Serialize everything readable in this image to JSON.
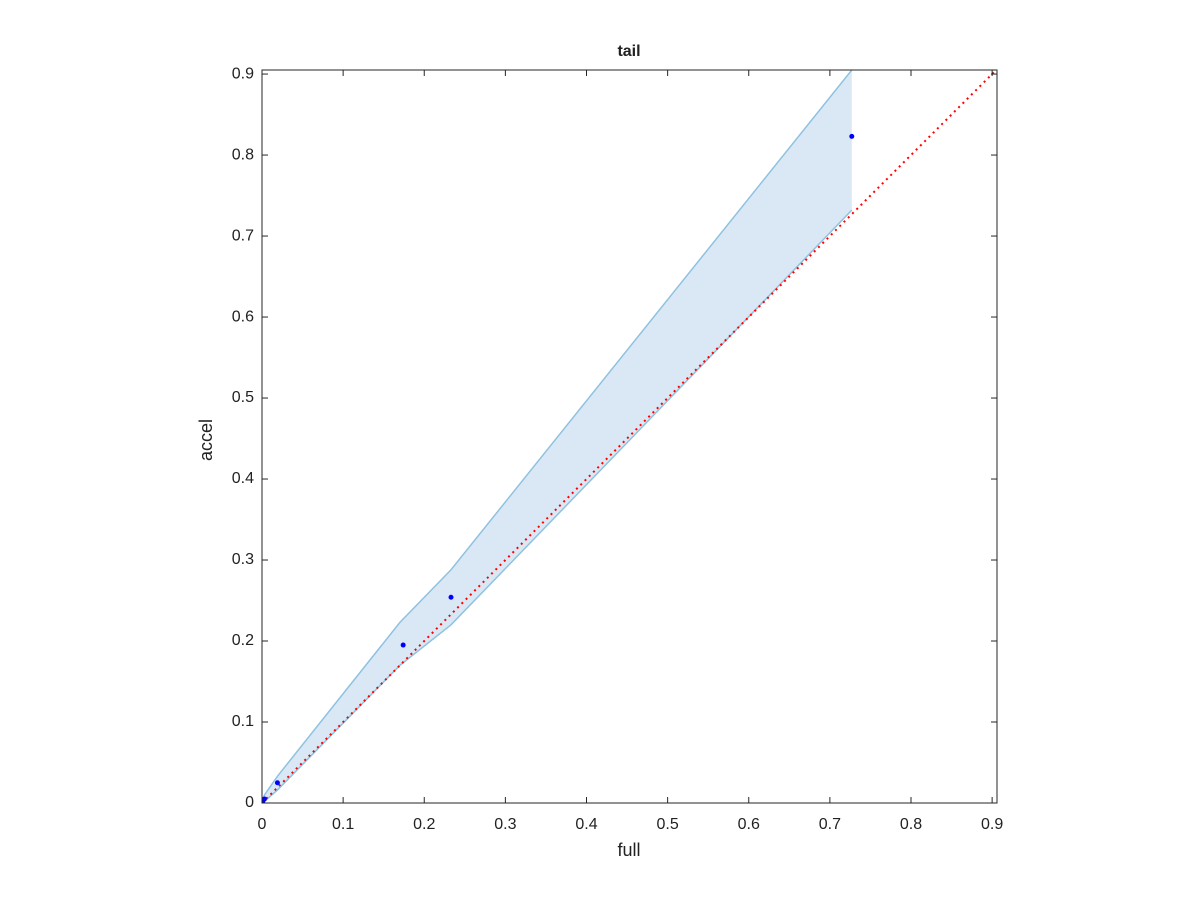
{
  "chart_data": {
    "type": "scatter",
    "title": "tail",
    "x_label": "full",
    "y_label": "accel",
    "xlim": [
      0,
      0.906
    ],
    "ylim": [
      0,
      0.905
    ],
    "xticks": [
      0,
      0.1,
      0.2,
      0.3,
      0.4,
      0.5,
      0.6,
      0.7,
      0.8,
      0.9
    ],
    "yticks": [
      0,
      0.1,
      0.2,
      0.3,
      0.4,
      0.5,
      0.6,
      0.7,
      0.8,
      0.9
    ],
    "band": {
      "x": [
        0,
        0.003,
        0.019,
        0.17,
        0.233,
        0.727
      ],
      "upper": [
        0,
        0.01,
        0.033,
        0.223,
        0.288,
        0.905
      ],
      "lower": [
        0,
        0.002,
        0.016,
        0.17,
        0.22,
        0.732
      ],
      "color": "#8fc2e0",
      "fill": "#dae8f5"
    },
    "points": {
      "x": [
        0,
        0.001,
        0.003,
        0.019,
        0.174,
        0.233,
        0.727
      ],
      "y": [
        0,
        0.002,
        0.005,
        0.025,
        0.195,
        0.254,
        0.823
      ],
      "color": "#0000ff"
    },
    "reference_line": {
      "x": [
        0,
        0.906
      ],
      "y": [
        0,
        0.906
      ],
      "color": "#ff0000"
    }
  }
}
